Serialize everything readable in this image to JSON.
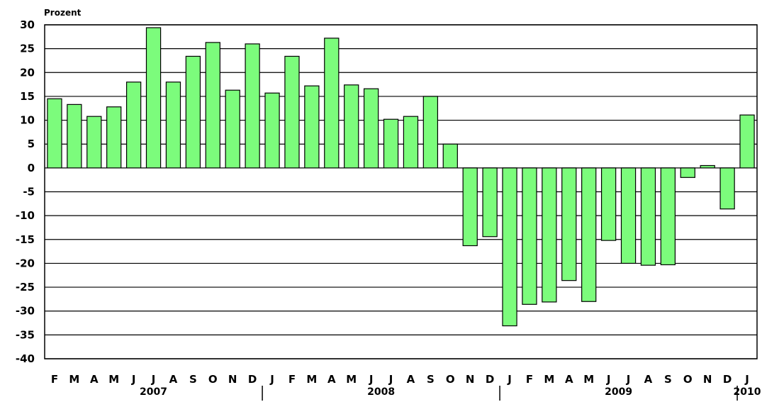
{
  "chart_data": {
    "type": "bar",
    "ylabel": "Prozent",
    "ylim": [
      -40,
      30
    ],
    "yticks": [
      30,
      25,
      20,
      15,
      10,
      5,
      0,
      -5,
      -10,
      -15,
      -20,
      -25,
      -30,
      -35,
      -40
    ],
    "grid": true,
    "bar_color": "#7cfc7c",
    "categories": [
      "F",
      "M",
      "A",
      "M",
      "J",
      "J",
      "A",
      "S",
      "O",
      "N",
      "D",
      "J",
      "F",
      "M",
      "A",
      "M",
      "J",
      "J",
      "A",
      "S",
      "O",
      "N",
      "D",
      "J",
      "F",
      "M",
      "A",
      "M",
      "J",
      "J",
      "A",
      "S",
      "O",
      "N",
      "D",
      "J"
    ],
    "values": [
      14.5,
      13.3,
      10.8,
      12.8,
      18.0,
      29.4,
      18.0,
      23.4,
      26.3,
      16.3,
      26.0,
      15.7,
      23.4,
      17.2,
      27.2,
      17.4,
      16.6,
      10.2,
      10.8,
      15.0,
      5.0,
      -16.3,
      -14.4,
      -33.1,
      -28.6,
      -28.1,
      -23.6,
      -28.0,
      -15.2,
      -20.0,
      -20.4,
      -20.3,
      -2.0,
      0.5,
      -8.6,
      11.1
    ],
    "years": [
      {
        "label": "2007",
        "start": 0,
        "end": 10
      },
      {
        "label": "2008",
        "start": 11,
        "end": 22
      },
      {
        "label": "2009",
        "start": 23,
        "end": 34
      },
      {
        "label": "2010",
        "start": 35,
        "end": 35
      }
    ]
  }
}
